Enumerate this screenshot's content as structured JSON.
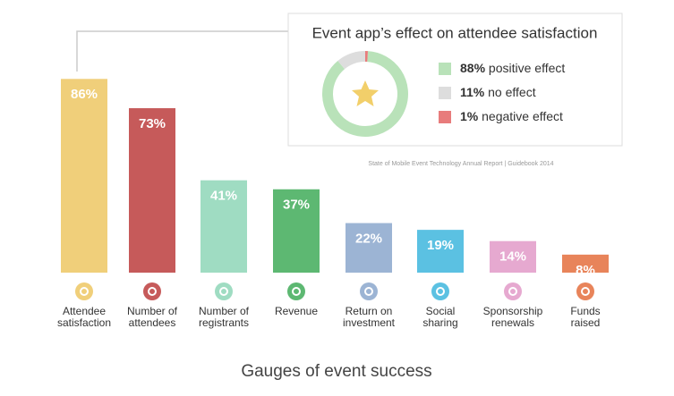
{
  "chart_data": {
    "type": "bar",
    "title": "Gauges of event success",
    "categories": [
      [
        "Attendee",
        "satisfaction"
      ],
      [
        "Number of",
        "attendees"
      ],
      [
        "Number of",
        "registrants"
      ],
      [
        "Revenue"
      ],
      [
        "Return on",
        "investment"
      ],
      [
        "Social",
        "sharing"
      ],
      [
        "Sponsorship",
        "renewals"
      ],
      [
        "Funds",
        "raised"
      ]
    ],
    "values": [
      86,
      73,
      41,
      37,
      22,
      19,
      14,
      8
    ],
    "value_labels": [
      "86%",
      "73%",
      "41%",
      "37%",
      "22%",
      "19%",
      "14%",
      "8%"
    ],
    "colors": [
      "#f0cf7a",
      "#c65a5a",
      "#9fdcc2",
      "#5db872",
      "#9cb4d4",
      "#5bc1e2",
      "#e6a9d0",
      "#e8845a"
    ],
    "inset": {
      "type": "pie",
      "title": "Event app’s effect on attendee satisfaction",
      "series": [
        {
          "name": "positive effect",
          "value": 88,
          "value_label": "88%",
          "color": "#b9e2b9"
        },
        {
          "name": "no effect",
          "value": 11,
          "value_label": "11%",
          "color": "#dddddd"
        },
        {
          "name": "negative effect",
          "value": 1,
          "value_label": "1%",
          "color": "#e87c7c"
        }
      ]
    },
    "source": "State of Mobile Event Technology Annual Report | Guidebook 2014"
  }
}
